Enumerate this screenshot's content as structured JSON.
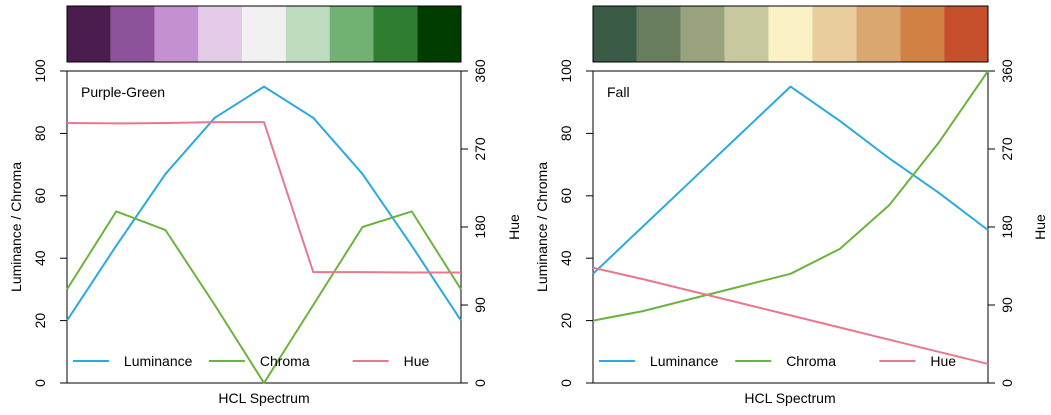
{
  "chart_data": [
    {
      "type": "line",
      "title": "Purple-Green",
      "xlabel": "HCL Spectrum",
      "ylabel_left": "Luminance / Chroma",
      "ylabel_right": "Hue",
      "ylim_left": [
        0,
        100
      ],
      "ylim_right": [
        0,
        360
      ],
      "yticks_left": [
        "0",
        "20",
        "40",
        "60",
        "80",
        "100"
      ],
      "yticks_right": [
        "0",
        "90",
        "180",
        "270",
        "360"
      ],
      "palette": [
        "#4B1D4F",
        "#8E529B",
        "#C590D2",
        "#E4CCE8",
        "#F1F1F1",
        "#BDDDBE",
        "#71B274",
        "#2E7D31",
        "#003C00"
      ],
      "x": [
        1,
        2,
        3,
        4,
        5,
        6,
        7,
        8,
        9
      ],
      "series": [
        {
          "name": "Luminance",
          "axis": "left",
          "color": "#2BA9E1",
          "values": [
            20,
            44,
            67,
            85,
            95,
            85,
            67,
            44,
            20
          ]
        },
        {
          "name": "Chroma",
          "axis": "left",
          "color": "#6BB33F",
          "values": [
            30,
            55,
            49,
            25,
            0,
            25,
            50,
            55,
            30
          ]
        },
        {
          "name": "Hue",
          "axis": "right",
          "color": "#E8788E",
          "values": [
            300,
            299.5,
            300,
            301,
            301,
            128,
            128,
            127.5,
            127.5
          ]
        }
      ],
      "legend_position": "bottom"
    },
    {
      "type": "line",
      "title": "Fall",
      "xlabel": "HCL Spectrum",
      "ylabel_left": "Luminance / Chroma",
      "ylabel_right": "Hue",
      "ylim_left": [
        0,
        100
      ],
      "ylim_right": [
        0,
        360
      ],
      "yticks_left": [
        "0",
        "20",
        "40",
        "60",
        "80",
        "100"
      ],
      "yticks_right": [
        "0",
        "90",
        "180",
        "270",
        "360"
      ],
      "palette": [
        "#3A5B45",
        "#677D5E",
        "#98A27D",
        "#C7C8A0",
        "#FAF2C4",
        "#E9CD9C",
        "#DBA771",
        "#D08143",
        "#C6502B"
      ],
      "x": [
        1,
        2,
        3,
        4,
        5,
        6,
        7,
        8,
        9
      ],
      "series": [
        {
          "name": "Luminance",
          "axis": "left",
          "color": "#2BA9E1",
          "values": [
            35,
            50,
            65,
            80,
            95,
            84,
            72,
            61,
            49
          ]
        },
        {
          "name": "Chroma",
          "axis": "left",
          "color": "#6BB33F",
          "values": [
            20,
            23,
            27,
            31,
            35,
            43,
            57,
            77,
            100
          ]
        },
        {
          "name": "Hue",
          "axis": "right",
          "color": "#E8788E",
          "values": [
            133,
            120,
            106,
            92,
            78,
            64,
            50,
            36,
            22
          ]
        }
      ],
      "legend_position": "bottom"
    }
  ]
}
